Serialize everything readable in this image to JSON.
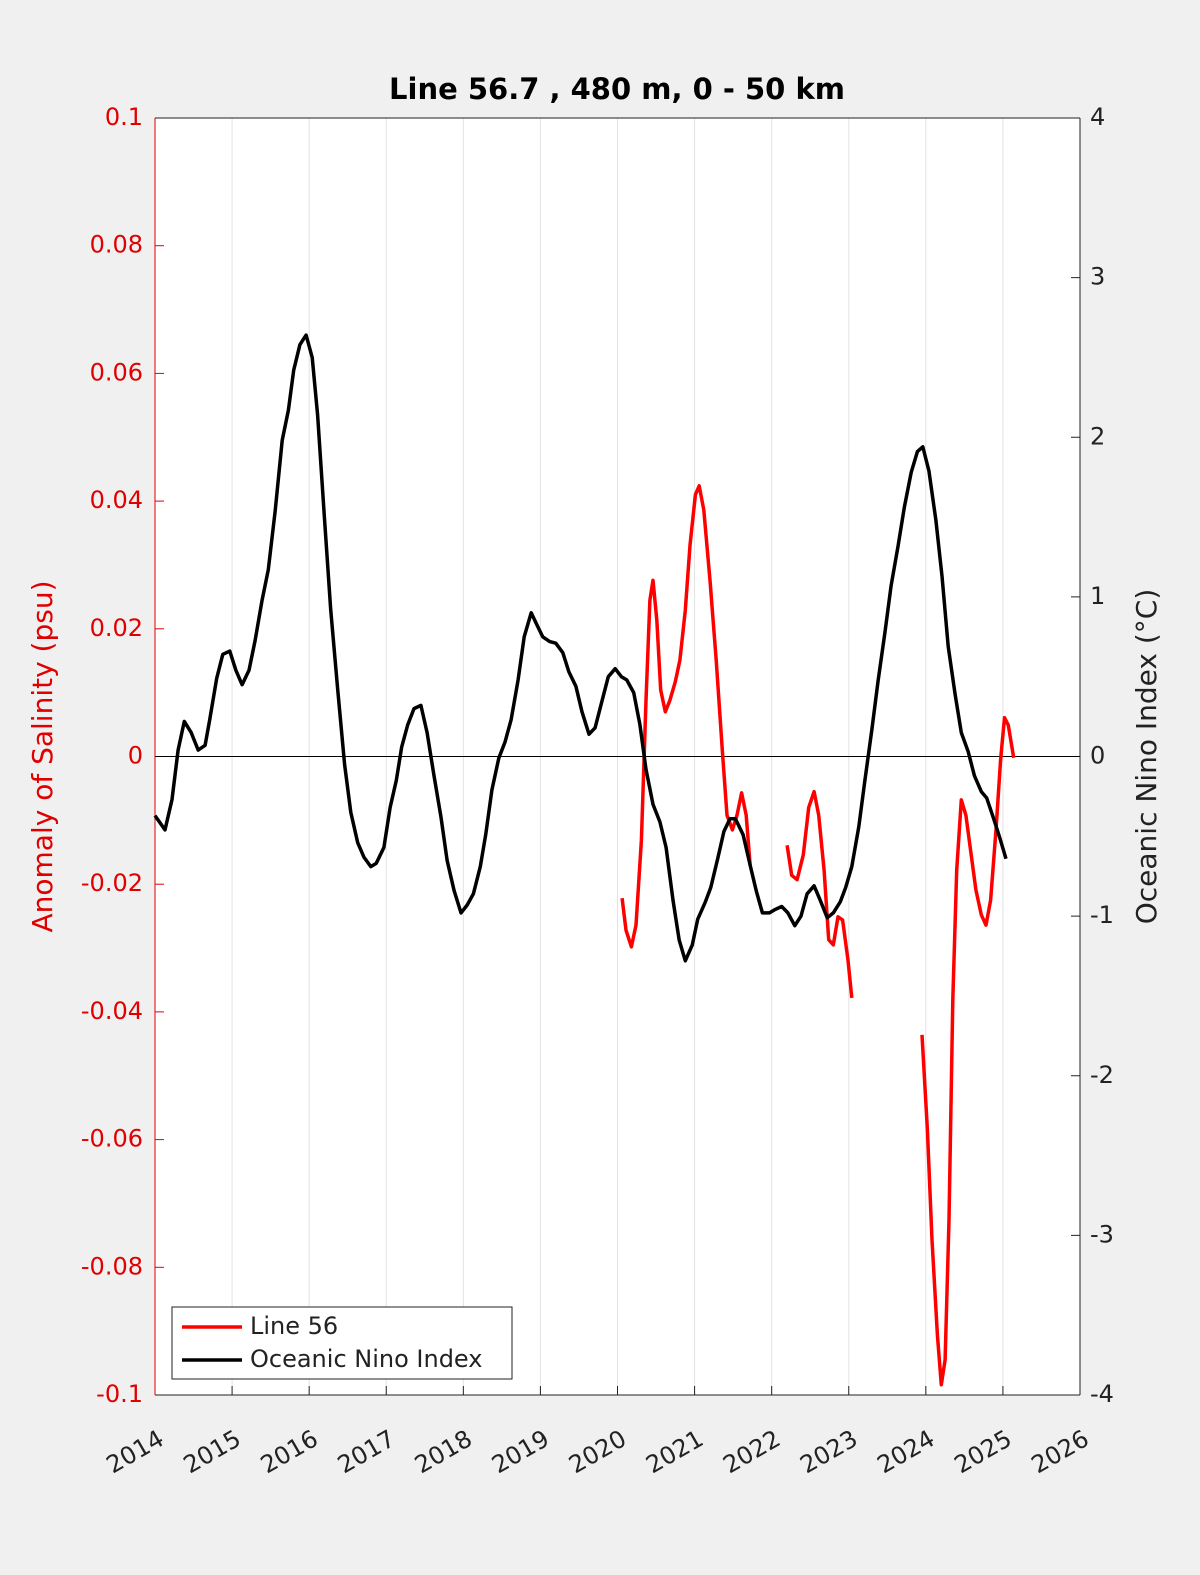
{
  "chart_data": {
    "type": "line",
    "title": "Line 56.7 , 480 m, 0 - 50 km",
    "y_label": "Anomaly of Salinity (psu)",
    "y2_label": "Oceanic Nino Index (°C)",
    "xlim": [
      2014,
      2026
    ],
    "xticks": [
      2014,
      2015,
      2016,
      2017,
      2018,
      2019,
      2020,
      2021,
      2022,
      2023,
      2024,
      2025,
      2026
    ],
    "ylim": [
      -0.1,
      0.1
    ],
    "yticks": [
      -0.1,
      -0.08,
      -0.06,
      -0.04,
      -0.02,
      0,
      0.02,
      0.04,
      0.06,
      0.08,
      0.1
    ],
    "y2lim": [
      -4,
      4
    ],
    "y2ticks": [
      -4,
      -3,
      -2,
      -1,
      0,
      1,
      2,
      3,
      4
    ],
    "hlines": [
      0
    ],
    "grid": "x",
    "legend": "lower left",
    "y_axis_color": "#e00000",
    "series": [
      {
        "name": "Line 56",
        "color": "#ff0000",
        "x": [
          2020.06,
          2020.11,
          2020.18,
          2020.24,
          2020.31,
          2020.37,
          2020.42,
          2020.46,
          2020.51,
          2020.56,
          2020.62,
          2020.68,
          2020.75,
          2020.81,
          2020.88,
          2020.94,
          2021.01,
          2021.06,
          2021.12,
          2021.2,
          2021.28,
          2021.36,
          2021.42,
          2021.49,
          2021.55,
          2021.61,
          2021.67,
          2021.72,
          2021.95,
          2022.2,
          2022.26,
          2022.33,
          2022.41,
          2022.48,
          2022.55,
          2022.61,
          2022.68,
          2022.74,
          2022.8,
          2022.86,
          2022.92,
          2022.99,
          2023.04,
          2023.5,
          2023.95,
          2024.02,
          2024.08,
          2024.15,
          2024.2,
          2024.25,
          2024.3,
          2024.35,
          2024.4,
          2024.46,
          2024.52,
          2024.58,
          2024.65,
          2024.72,
          2024.78,
          2024.84,
          2024.91,
          2024.97,
          2025.02,
          2025.07,
          2025.14
        ],
        "values": [
          -0.0222,
          -0.0272,
          -0.0298,
          -0.0264,
          -0.0131,
          0.0088,
          0.0245,
          0.0276,
          0.0214,
          0.0104,
          0.007,
          0.0088,
          0.0117,
          0.0151,
          0.0229,
          0.0331,
          0.041,
          0.0424,
          0.0386,
          0.0276,
          0.0151,
          0.001,
          -0.0092,
          -0.0115,
          -0.0092,
          -0.0057,
          -0.0092,
          -0.017,
          null,
          -0.0139,
          -0.0186,
          -0.0193,
          -0.0154,
          -0.008,
          -0.0055,
          -0.0092,
          -0.0178,
          -0.0287,
          -0.0295,
          -0.0251,
          -0.0256,
          -0.0319,
          -0.0378,
          null,
          -0.0436,
          -0.0585,
          -0.0757,
          -0.0906,
          -0.0984,
          -0.0945,
          -0.0726,
          -0.0381,
          -0.0178,
          -0.0068,
          -0.0092,
          -0.0146,
          -0.0209,
          -0.0248,
          -0.0264,
          -0.0225,
          -0.0115,
          -0.0005,
          0.0061,
          0.0049,
          -0.0002
        ]
      },
      {
        "name": "Oceanic Nino Index",
        "color": "#000000",
        "axis": "y2",
        "x": [
          2014.0,
          2014.13,
          2014.22,
          2014.3,
          2014.38,
          2014.47,
          2014.56,
          2014.65,
          2014.71,
          2014.8,
          2014.88,
          2014.97,
          2015.05,
          2015.13,
          2015.22,
          2015.3,
          2015.39,
          2015.47,
          2015.56,
          2015.65,
          2015.73,
          2015.8,
          2015.88,
          2015.96,
          2016.04,
          2016.11,
          2016.2,
          2016.28,
          2016.37,
          2016.46,
          2016.54,
          2016.63,
          2016.71,
          2016.8,
          2016.87,
          2016.97,
          2017.05,
          2017.13,
          2017.2,
          2017.28,
          2017.36,
          2017.45,
          2017.53,
          2017.62,
          2017.71,
          2017.79,
          2017.88,
          2017.97,
          2018.05,
          2018.13,
          2018.22,
          2018.29,
          2018.37,
          2018.46,
          2018.54,
          2018.62,
          2018.71,
          2018.79,
          2018.88,
          2018.96,
          2019.03,
          2019.12,
          2019.2,
          2019.29,
          2019.37,
          2019.46,
          2019.54,
          2019.63,
          2019.71,
          2019.8,
          2019.88,
          2019.97,
          2020.05,
          2020.12,
          2020.21,
          2020.29,
          2020.37,
          2020.46,
          2020.55,
          2020.63,
          2020.72,
          2020.8,
          2020.88,
          2020.97,
          2021.04,
          2021.14,
          2021.21,
          2021.3,
          2021.38,
          2021.46,
          2021.53,
          2021.63,
          2021.72,
          2021.8,
          2021.88,
          2021.97,
          2022.04,
          2022.13,
          2022.21,
          2022.3,
          2022.38,
          2022.46,
          2022.55,
          2022.63,
          2022.72,
          2022.8,
          2022.89,
          2022.96,
          2023.04,
          2023.13,
          2023.21,
          2023.3,
          2023.38,
          2023.47,
          2023.55,
          2023.64,
          2023.72,
          2023.81,
          2023.89,
          2023.96,
          2024.04,
          2024.13,
          2024.21,
          2024.29,
          2024.38,
          2024.46,
          2024.55,
          2024.63,
          2024.72,
          2024.79,
          2024.88,
          2024.96,
          2025.04
        ],
        "values": [
          -0.37,
          -0.46,
          -0.27,
          0.04,
          0.22,
          0.15,
          0.04,
          0.07,
          0.23,
          0.49,
          0.64,
          0.66,
          0.54,
          0.45,
          0.54,
          0.73,
          0.98,
          1.17,
          1.54,
          1.98,
          2.17,
          2.42,
          2.58,
          2.64,
          2.5,
          2.14,
          1.48,
          0.92,
          0.42,
          -0.05,
          -0.35,
          -0.54,
          -0.63,
          -0.69,
          -0.67,
          -0.57,
          -0.32,
          -0.15,
          0.06,
          0.2,
          0.3,
          0.32,
          0.15,
          -0.12,
          -0.38,
          -0.65,
          -0.84,
          -0.98,
          -0.93,
          -0.86,
          -0.69,
          -0.49,
          -0.21,
          -0.01,
          0.09,
          0.23,
          0.48,
          0.75,
          0.9,
          0.82,
          0.75,
          0.72,
          0.71,
          0.65,
          0.53,
          0.44,
          0.28,
          0.14,
          0.18,
          0.35,
          0.5,
          0.55,
          0.5,
          0.48,
          0.4,
          0.2,
          -0.08,
          -0.3,
          -0.41,
          -0.57,
          -0.9,
          -1.15,
          -1.28,
          -1.18,
          -1.02,
          -0.91,
          -0.82,
          -0.64,
          -0.47,
          -0.39,
          -0.39,
          -0.49,
          -0.68,
          -0.84,
          -0.98,
          -0.98,
          -0.96,
          -0.94,
          -0.98,
          -1.06,
          -1.0,
          -0.86,
          -0.81,
          -0.9,
          -1.01,
          -0.98,
          -0.91,
          -0.82,
          -0.69,
          -0.44,
          -0.15,
          0.17,
          0.47,
          0.78,
          1.07,
          1.32,
          1.56,
          1.78,
          1.91,
          1.94,
          1.79,
          1.48,
          1.13,
          0.69,
          0.39,
          0.15,
          0.03,
          -0.12,
          -0.22,
          -0.26,
          -0.39,
          -0.51,
          -0.64
        ]
      }
    ]
  }
}
